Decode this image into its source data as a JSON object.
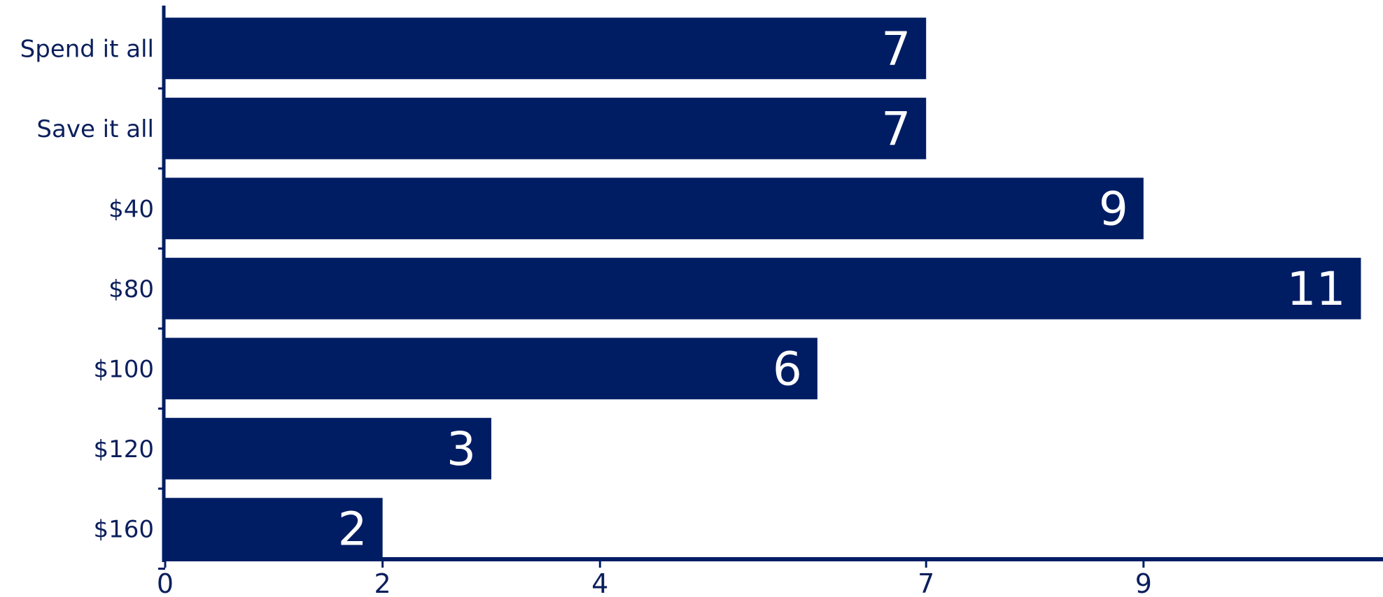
{
  "chart_data": {
    "type": "bar",
    "orientation": "horizontal",
    "categories": [
      "Spend it all",
      "Save it all",
      "$40",
      "$80",
      "$100",
      "$120",
      "$160"
    ],
    "values": [
      7,
      7,
      9,
      11,
      6,
      3,
      2
    ],
    "data_labels": [
      "7",
      "7",
      "9",
      "11",
      "6",
      "3",
      "2"
    ],
    "x_ticks": [
      0,
      2,
      4,
      7,
      9
    ],
    "x_tick_labels": [
      "0",
      "2",
      "4",
      "7",
      "9"
    ],
    "xlim": [
      0,
      11.1
    ],
    "grid": false,
    "legend": "none",
    "colors": {
      "bar": "#001d64",
      "axis": "#001d64",
      "text": "#0b1f5c",
      "data_label": "#ffffff"
    }
  }
}
